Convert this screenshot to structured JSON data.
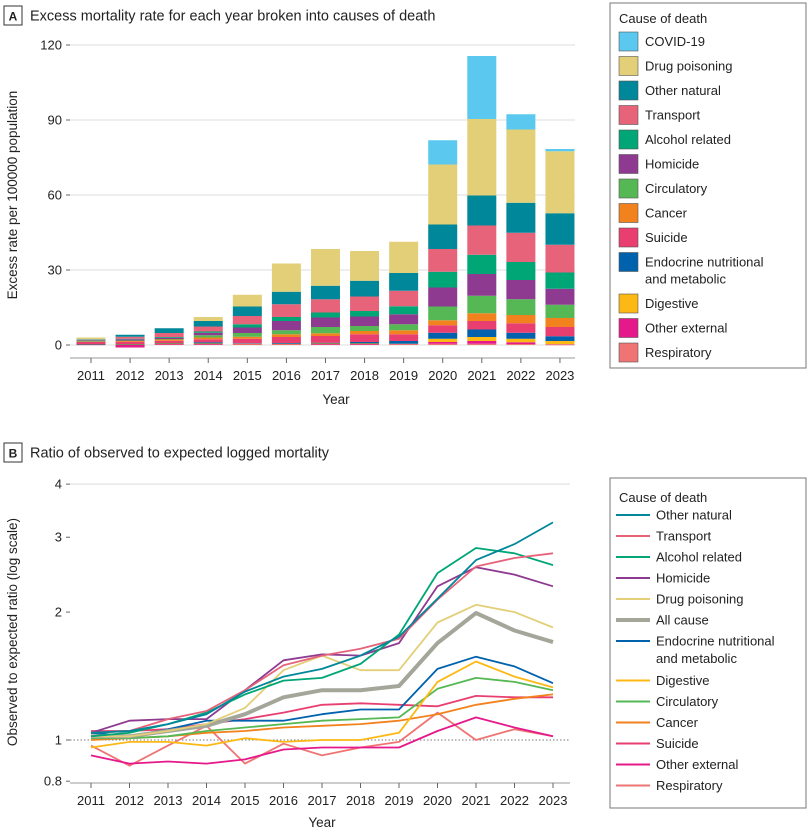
{
  "chart_data": [
    {
      "type": "bar",
      "stacked": true,
      "panel_label": "A",
      "title": "Excess mortality rate for each year broken into causes of death",
      "xlabel": "Year",
      "ylabel": "Excess rate per 100000 population",
      "ylim": [
        0,
        120
      ],
      "yticks": [
        0,
        30,
        60,
        90,
        120
      ],
      "grid": true,
      "legend_title": "Cause of death",
      "legend_placement": "right",
      "categories": [
        "2011",
        "2012",
        "2013",
        "2014",
        "2015",
        "2016",
        "2017",
        "2018",
        "2019",
        "2020",
        "2021",
        "2022",
        "2023"
      ],
      "legend_order": [
        "COVID-19",
        "Drug poisoning",
        "Other natural",
        "Transport",
        "Alcohol related",
        "Homicide",
        "Circulatory",
        "Cancer",
        "Suicide",
        "Endocrine nutritional and metabolic",
        "Digestive",
        "Other external",
        "Respiratory"
      ],
      "series": [
        {
          "name": "Respiratory",
          "color": "#ef7474",
          "values": [
            0.1,
            0.1,
            0.2,
            0.2,
            0.2,
            0.2,
            0.2,
            0.2,
            0.2,
            0.5,
            0.5,
            0.4,
            0.1
          ]
        },
        {
          "name": "Other external",
          "color": "#e5198a",
          "values": [
            0.1,
            -1.0,
            0.3,
            0.2,
            0.2,
            0.2,
            0.2,
            0.2,
            0.1,
            0.7,
            1.1,
            0.7,
            0.2
          ]
        },
        {
          "name": "Digestive",
          "color": "#fcb813",
          "values": [
            0.1,
            0.1,
            0.1,
            0.2,
            0.1,
            0.1,
            0.2,
            0.2,
            0.2,
            1.3,
            1.6,
            1.4,
            1.3
          ]
        },
        {
          "name": "Endocrine nutritional and metabolic",
          "color": "#0061ad",
          "values": [
            0.1,
            0.2,
            0.2,
            0.5,
            0.2,
            0.3,
            0.3,
            0.6,
            1.1,
            2.4,
            3.0,
            2.4,
            1.9
          ]
        },
        {
          "name": "Suicide",
          "color": "#e83e70",
          "values": [
            0.9,
            0.9,
            0.9,
            1.2,
            1.8,
            2.4,
            2.7,
            3.1,
            2.7,
            3.0,
            3.4,
            3.8,
            3.7
          ]
        },
        {
          "name": "Cancer",
          "color": "#f2821e",
          "values": [
            0.2,
            0.3,
            0.5,
            0.7,
            0.8,
            1.1,
            1.1,
            1.3,
            1.6,
            2.0,
            3.1,
            3.3,
            3.6
          ]
        },
        {
          "name": "Circulatory",
          "color": "#56b854",
          "values": [
            0.1,
            0.2,
            0.2,
            0.9,
            1.5,
            1.6,
            2.5,
            2.0,
            2.4,
            5.5,
            7.0,
            6.3,
            5.3
          ]
        },
        {
          "name": "Homicide",
          "color": "#8e3a91",
          "values": [
            0.2,
            0.5,
            0.5,
            1.0,
            2.2,
            3.7,
            3.8,
            3.8,
            4.0,
            7.6,
            8.7,
            7.7,
            6.4
          ]
        },
        {
          "name": "Alcohol related",
          "color": "#00a676",
          "values": [
            0.1,
            0.2,
            0.3,
            0.5,
            1.3,
            1.6,
            2.0,
            2.2,
            3.2,
            6.3,
            7.7,
            7.2,
            6.5
          ]
        },
        {
          "name": "Transport",
          "color": "#e6637a",
          "values": [
            0.2,
            0.8,
            1.6,
            2.0,
            3.3,
            5.1,
            5.3,
            5.8,
            6.2,
            9.1,
            11.7,
            11.7,
            11.1
          ]
        },
        {
          "name": "Other natural",
          "color": "#00879a",
          "values": [
            0.2,
            0.8,
            1.9,
            2.2,
            3.8,
            5.0,
            5.4,
            6.3,
            7.1,
            9.8,
            12.0,
            12.0,
            12.6
          ]
        },
        {
          "name": "Drug poisoning",
          "color": "#e3cf77",
          "values": [
            0.7,
            0.0,
            0.0,
            1.6,
            4.7,
            11.3,
            14.7,
            11.9,
            12.5,
            24.0,
            30.6,
            29.3,
            24.8
          ]
        },
        {
          "name": "COVID-19",
          "color": "#5bc8ef",
          "values": [
            0,
            0,
            0,
            0,
            0,
            0,
            0,
            0,
            0,
            9.7,
            25.2,
            6.1,
            0.9
          ]
        }
      ]
    },
    {
      "type": "line",
      "panel_label": "B",
      "title": "Ratio of observed to expected logged mortality",
      "xlabel": "Year",
      "ylabel": "Observed to expected ratio (log scale)",
      "yscale": "log",
      "ylim": [
        0.8,
        4
      ],
      "yticks": [
        "0.8",
        "1",
        "2",
        "3",
        "4"
      ],
      "reference_line": 1,
      "legend_title": "Cause of death",
      "legend_placement": "right",
      "x": [
        "2011",
        "2012",
        "2013",
        "2014",
        "2015",
        "2016",
        "2017",
        "2018",
        "2019",
        "2020",
        "2021",
        "2022",
        "2023"
      ],
      "series": [
        {
          "name": "Other natural",
          "color": "#00879a",
          "values": [
            1.04,
            1.05,
            1.09,
            1.15,
            1.3,
            1.41,
            1.47,
            1.58,
            1.75,
            2.15,
            2.65,
            2.89,
            3.25
          ]
        },
        {
          "name": "Transport",
          "color": "#e6637a",
          "values": [
            1.04,
            1.05,
            1.12,
            1.17,
            1.31,
            1.5,
            1.58,
            1.64,
            1.73,
            2.14,
            2.56,
            2.68,
            2.75
          ]
        },
        {
          "name": "Alcohol related",
          "color": "#00a676",
          "values": [
            1.02,
            1.04,
            1.09,
            1.16,
            1.28,
            1.38,
            1.4,
            1.51,
            1.77,
            2.47,
            2.83,
            2.75,
            2.58
          ]
        },
        {
          "name": "Homicide",
          "color": "#8e3a91",
          "values": [
            1.04,
            1.11,
            1.12,
            1.12,
            1.31,
            1.54,
            1.59,
            1.58,
            1.69,
            2.3,
            2.55,
            2.45,
            2.3
          ]
        },
        {
          "name": "Drug poisoning",
          "color": "#e3cf77",
          "values": [
            1.02,
            1.02,
            1.05,
            1.09,
            1.19,
            1.46,
            1.58,
            1.46,
            1.46,
            1.89,
            2.08,
            2.0,
            1.84
          ]
        },
        {
          "name": "All cause",
          "color": "#a4a69a",
          "thick": true,
          "values": [
            1.02,
            1.02,
            1.05,
            1.08,
            1.15,
            1.26,
            1.31,
            1.31,
            1.34,
            1.69,
            1.99,
            1.81,
            1.7
          ]
        },
        {
          "name": "Endocrine nutritional and metabolic",
          "color": "#0061ad",
          "values": [
            1.04,
            1.02,
            1.06,
            1.11,
            1.11,
            1.11,
            1.15,
            1.18,
            1.18,
            1.47,
            1.57,
            1.49,
            1.36
          ]
        },
        {
          "name": "Digestive",
          "color": "#fcb813",
          "values": [
            0.96,
            0.99,
            0.99,
            0.97,
            1.01,
            0.99,
            1.0,
            1.0,
            1.04,
            1.37,
            1.53,
            1.41,
            1.33
          ]
        },
        {
          "name": "Circulatory",
          "color": "#56b854",
          "values": [
            1.01,
            1.01,
            1.02,
            1.05,
            1.07,
            1.09,
            1.11,
            1.12,
            1.13,
            1.32,
            1.4,
            1.37,
            1.31
          ]
        },
        {
          "name": "Cancer",
          "color": "#f2821e",
          "values": [
            1.0,
            1.01,
            1.02,
            1.04,
            1.05,
            1.07,
            1.08,
            1.09,
            1.11,
            1.15,
            1.21,
            1.25,
            1.28
          ]
        },
        {
          "name": "Suicide",
          "color": "#e83e70",
          "values": [
            1.05,
            1.05,
            1.06,
            1.09,
            1.12,
            1.16,
            1.21,
            1.22,
            1.21,
            1.2,
            1.27,
            1.26,
            1.26
          ]
        },
        {
          "name": "Other external",
          "color": "#e5198a",
          "values": [
            0.92,
            0.88,
            0.89,
            0.88,
            0.9,
            0.95,
            0.96,
            0.96,
            0.96,
            1.05,
            1.13,
            1.07,
            1.02
          ]
        },
        {
          "name": "Respiratory",
          "color": "#ef7474",
          "values": [
            0.97,
            0.87,
            0.97,
            1.08,
            0.88,
            0.98,
            0.92,
            0.96,
            0.99,
            1.16,
            1.0,
            1.06,
            1.02
          ]
        }
      ]
    }
  ]
}
